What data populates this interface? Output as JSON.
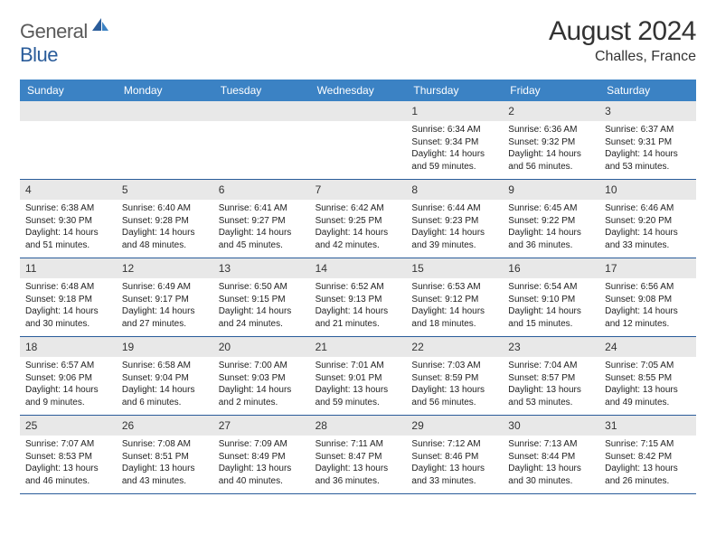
{
  "logo": {
    "general": "General",
    "blue": "Blue"
  },
  "title": "August 2024",
  "location": "Challes, France",
  "colors": {
    "header_bg": "#3b82c4",
    "header_text": "#ffffff",
    "daynum_bg": "#e8e8e8",
    "border": "#2a5c9a",
    "text": "#222222"
  },
  "day_names": [
    "Sunday",
    "Monday",
    "Tuesday",
    "Wednesday",
    "Thursday",
    "Friday",
    "Saturday"
  ],
  "weeks": [
    [
      null,
      null,
      null,
      null,
      {
        "n": "1",
        "sr": "Sunrise: 6:34 AM",
        "ss": "Sunset: 9:34 PM",
        "dl": "Daylight: 14 hours and 59 minutes."
      },
      {
        "n": "2",
        "sr": "Sunrise: 6:36 AM",
        "ss": "Sunset: 9:32 PM",
        "dl": "Daylight: 14 hours and 56 minutes."
      },
      {
        "n": "3",
        "sr": "Sunrise: 6:37 AM",
        "ss": "Sunset: 9:31 PM",
        "dl": "Daylight: 14 hours and 53 minutes."
      }
    ],
    [
      {
        "n": "4",
        "sr": "Sunrise: 6:38 AM",
        "ss": "Sunset: 9:30 PM",
        "dl": "Daylight: 14 hours and 51 minutes."
      },
      {
        "n": "5",
        "sr": "Sunrise: 6:40 AM",
        "ss": "Sunset: 9:28 PM",
        "dl": "Daylight: 14 hours and 48 minutes."
      },
      {
        "n": "6",
        "sr": "Sunrise: 6:41 AM",
        "ss": "Sunset: 9:27 PM",
        "dl": "Daylight: 14 hours and 45 minutes."
      },
      {
        "n": "7",
        "sr": "Sunrise: 6:42 AM",
        "ss": "Sunset: 9:25 PM",
        "dl": "Daylight: 14 hours and 42 minutes."
      },
      {
        "n": "8",
        "sr": "Sunrise: 6:44 AM",
        "ss": "Sunset: 9:23 PM",
        "dl": "Daylight: 14 hours and 39 minutes."
      },
      {
        "n": "9",
        "sr": "Sunrise: 6:45 AM",
        "ss": "Sunset: 9:22 PM",
        "dl": "Daylight: 14 hours and 36 minutes."
      },
      {
        "n": "10",
        "sr": "Sunrise: 6:46 AM",
        "ss": "Sunset: 9:20 PM",
        "dl": "Daylight: 14 hours and 33 minutes."
      }
    ],
    [
      {
        "n": "11",
        "sr": "Sunrise: 6:48 AM",
        "ss": "Sunset: 9:18 PM",
        "dl": "Daylight: 14 hours and 30 minutes."
      },
      {
        "n": "12",
        "sr": "Sunrise: 6:49 AM",
        "ss": "Sunset: 9:17 PM",
        "dl": "Daylight: 14 hours and 27 minutes."
      },
      {
        "n": "13",
        "sr": "Sunrise: 6:50 AM",
        "ss": "Sunset: 9:15 PM",
        "dl": "Daylight: 14 hours and 24 minutes."
      },
      {
        "n": "14",
        "sr": "Sunrise: 6:52 AM",
        "ss": "Sunset: 9:13 PM",
        "dl": "Daylight: 14 hours and 21 minutes."
      },
      {
        "n": "15",
        "sr": "Sunrise: 6:53 AM",
        "ss": "Sunset: 9:12 PM",
        "dl": "Daylight: 14 hours and 18 minutes."
      },
      {
        "n": "16",
        "sr": "Sunrise: 6:54 AM",
        "ss": "Sunset: 9:10 PM",
        "dl": "Daylight: 14 hours and 15 minutes."
      },
      {
        "n": "17",
        "sr": "Sunrise: 6:56 AM",
        "ss": "Sunset: 9:08 PM",
        "dl": "Daylight: 14 hours and 12 minutes."
      }
    ],
    [
      {
        "n": "18",
        "sr": "Sunrise: 6:57 AM",
        "ss": "Sunset: 9:06 PM",
        "dl": "Daylight: 14 hours and 9 minutes."
      },
      {
        "n": "19",
        "sr": "Sunrise: 6:58 AM",
        "ss": "Sunset: 9:04 PM",
        "dl": "Daylight: 14 hours and 6 minutes."
      },
      {
        "n": "20",
        "sr": "Sunrise: 7:00 AM",
        "ss": "Sunset: 9:03 PM",
        "dl": "Daylight: 14 hours and 2 minutes."
      },
      {
        "n": "21",
        "sr": "Sunrise: 7:01 AM",
        "ss": "Sunset: 9:01 PM",
        "dl": "Daylight: 13 hours and 59 minutes."
      },
      {
        "n": "22",
        "sr": "Sunrise: 7:03 AM",
        "ss": "Sunset: 8:59 PM",
        "dl": "Daylight: 13 hours and 56 minutes."
      },
      {
        "n": "23",
        "sr": "Sunrise: 7:04 AM",
        "ss": "Sunset: 8:57 PM",
        "dl": "Daylight: 13 hours and 53 minutes."
      },
      {
        "n": "24",
        "sr": "Sunrise: 7:05 AM",
        "ss": "Sunset: 8:55 PM",
        "dl": "Daylight: 13 hours and 49 minutes."
      }
    ],
    [
      {
        "n": "25",
        "sr": "Sunrise: 7:07 AM",
        "ss": "Sunset: 8:53 PM",
        "dl": "Daylight: 13 hours and 46 minutes."
      },
      {
        "n": "26",
        "sr": "Sunrise: 7:08 AM",
        "ss": "Sunset: 8:51 PM",
        "dl": "Daylight: 13 hours and 43 minutes."
      },
      {
        "n": "27",
        "sr": "Sunrise: 7:09 AM",
        "ss": "Sunset: 8:49 PM",
        "dl": "Daylight: 13 hours and 40 minutes."
      },
      {
        "n": "28",
        "sr": "Sunrise: 7:11 AM",
        "ss": "Sunset: 8:47 PM",
        "dl": "Daylight: 13 hours and 36 minutes."
      },
      {
        "n": "29",
        "sr": "Sunrise: 7:12 AM",
        "ss": "Sunset: 8:46 PM",
        "dl": "Daylight: 13 hours and 33 minutes."
      },
      {
        "n": "30",
        "sr": "Sunrise: 7:13 AM",
        "ss": "Sunset: 8:44 PM",
        "dl": "Daylight: 13 hours and 30 minutes."
      },
      {
        "n": "31",
        "sr": "Sunrise: 7:15 AM",
        "ss": "Sunset: 8:42 PM",
        "dl": "Daylight: 13 hours and 26 minutes."
      }
    ]
  ]
}
